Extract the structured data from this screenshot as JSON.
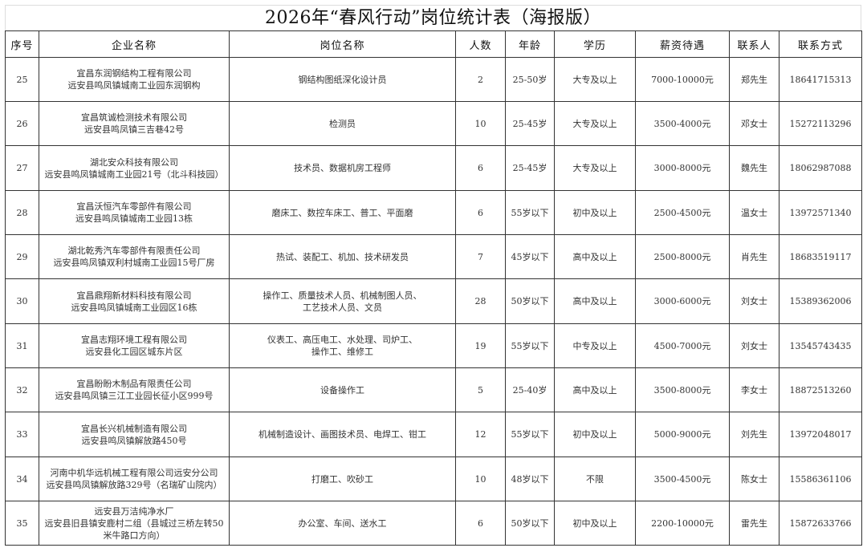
{
  "title": "2026年“春风行动”岗位统计表（海报版）",
  "headers": [
    "序号",
    "企业名称",
    "岗位名称",
    "人数",
    "年龄",
    "学历",
    "薪资待遇",
    "联系人",
    "联系方式"
  ],
  "rows": [
    {
      "no": "25",
      "company": [
        "宜昌东润钢结构工程有限公司",
        "远安县鸣凤镇城南工业园东润钢构"
      ],
      "position": [
        "钢结构图纸深化设计员"
      ],
      "count": "2",
      "age": "25-50岁",
      "education": "大专及以上",
      "salary": "7000-10000元",
      "contact": "郑先生",
      "phone": "18641715313"
    },
    {
      "no": "26",
      "company": [
        "宜昌筑诚检测技术有限公司",
        "远安县鸣凤镇三吉巷42号"
      ],
      "position": [
        "检测员"
      ],
      "count": "10",
      "age": "25-45岁",
      "education": "大专及以上",
      "salary": "3500-4000元",
      "contact": "邓女士",
      "phone": "15272113296"
    },
    {
      "no": "27",
      "company": [
        "湖北安众科技有限公司",
        "远安县鸣凤镇城南工业园21号（北斗科技园）"
      ],
      "position": [
        "技术员、数据机房工程师"
      ],
      "count": "6",
      "age": "25-45岁",
      "education": "大专及以上",
      "salary": "3000-8000元",
      "contact": "魏先生",
      "phone": "18062987088"
    },
    {
      "no": "28",
      "company": [
        "宜昌沃恒汽车零部件有限公司",
        "远安县鸣凤镇城南工业园13栋"
      ],
      "position": [
        "磨床工、数控车床工、普工、平面磨"
      ],
      "count": "6",
      "age": "55岁以下",
      "education": "初中及以上",
      "salary": "2500-4500元",
      "contact": "温女士",
      "phone": "13972571340"
    },
    {
      "no": "29",
      "company": [
        "湖北乾秀汽车零部件有限责任公司",
        "远安县鸣凤镇双利村城南工业园15号厂房"
      ],
      "position": [
        "热试、装配工、机加、技术研发员"
      ],
      "count": "7",
      "age": "45岁以下",
      "education": "高中及以上",
      "salary": "2500-8000元",
      "contact": "肖先生",
      "phone": "18683519117"
    },
    {
      "no": "30",
      "company": [
        "宜昌鼎翔新材料科技有限公司",
        "远安县鸣凤镇城南工业园区16栋"
      ],
      "position": [
        "操作工、质量技术人员、机械制图人员、",
        "工艺技术人员、文员"
      ],
      "count": "28",
      "age": "50岁以下",
      "education": "高中及以上",
      "salary": "3000-6000元",
      "contact": "刘女士",
      "phone": "15389362006"
    },
    {
      "no": "31",
      "company": [
        "宜昌志翔环境工程有限公司",
        "远安县化工园区城东片区"
      ],
      "position": [
        "仪表工、高压电工、水处理、司炉工、",
        "操作工、维修工"
      ],
      "count": "19",
      "age": "55岁以下",
      "education": "中专及以上",
      "salary": "4500-7000元",
      "contact": "刘女士",
      "phone": "13545743435"
    },
    {
      "no": "32",
      "company": [
        "宜昌盼盼木制品有限责任公司",
        "远安县鸣凤镇三江工业园长征小区999号"
      ],
      "position": [
        "设备操作工"
      ],
      "count": "5",
      "age": "25-40岁",
      "education": "高中及以上",
      "salary": "3500-8000元",
      "contact": "李女士",
      "phone": "18872513260"
    },
    {
      "no": "33",
      "company": [
        "宜昌长兴机械制造有限公司",
        "远安县鸣凤镇解放路450号"
      ],
      "position": [
        "机械制造设计、画图技术员、电焊工、钳工"
      ],
      "count": "12",
      "age": "55岁以下",
      "education": "初中及以上",
      "salary": "5000-9000元",
      "contact": "刘先生",
      "phone": "13972048017"
    },
    {
      "no": "34",
      "company": [
        "河南中机华远机械工程有限公司远安分公司",
        "远安县鸣凤镇解放路329号（名瑞矿山院内）"
      ],
      "position": [
        "打磨工、吹砂工"
      ],
      "count": "10",
      "age": "48岁以下",
      "education": "不限",
      "salary": "3500-4500元",
      "contact": "陈女士",
      "phone": "15586361106"
    },
    {
      "no": "35",
      "company": [
        "远安县万洁纯净水厂",
        "远安县旧县镇安鹿村二组（县城过三桥左转50",
        "米牛路口方向）"
      ],
      "position": [
        "办公室、车间、送水工"
      ],
      "count": "6",
      "age": "50岁以下",
      "education": "初中及以上",
      "salary": "2200-10000元",
      "contact": "雷先生",
      "phone": "15872633766"
    }
  ]
}
